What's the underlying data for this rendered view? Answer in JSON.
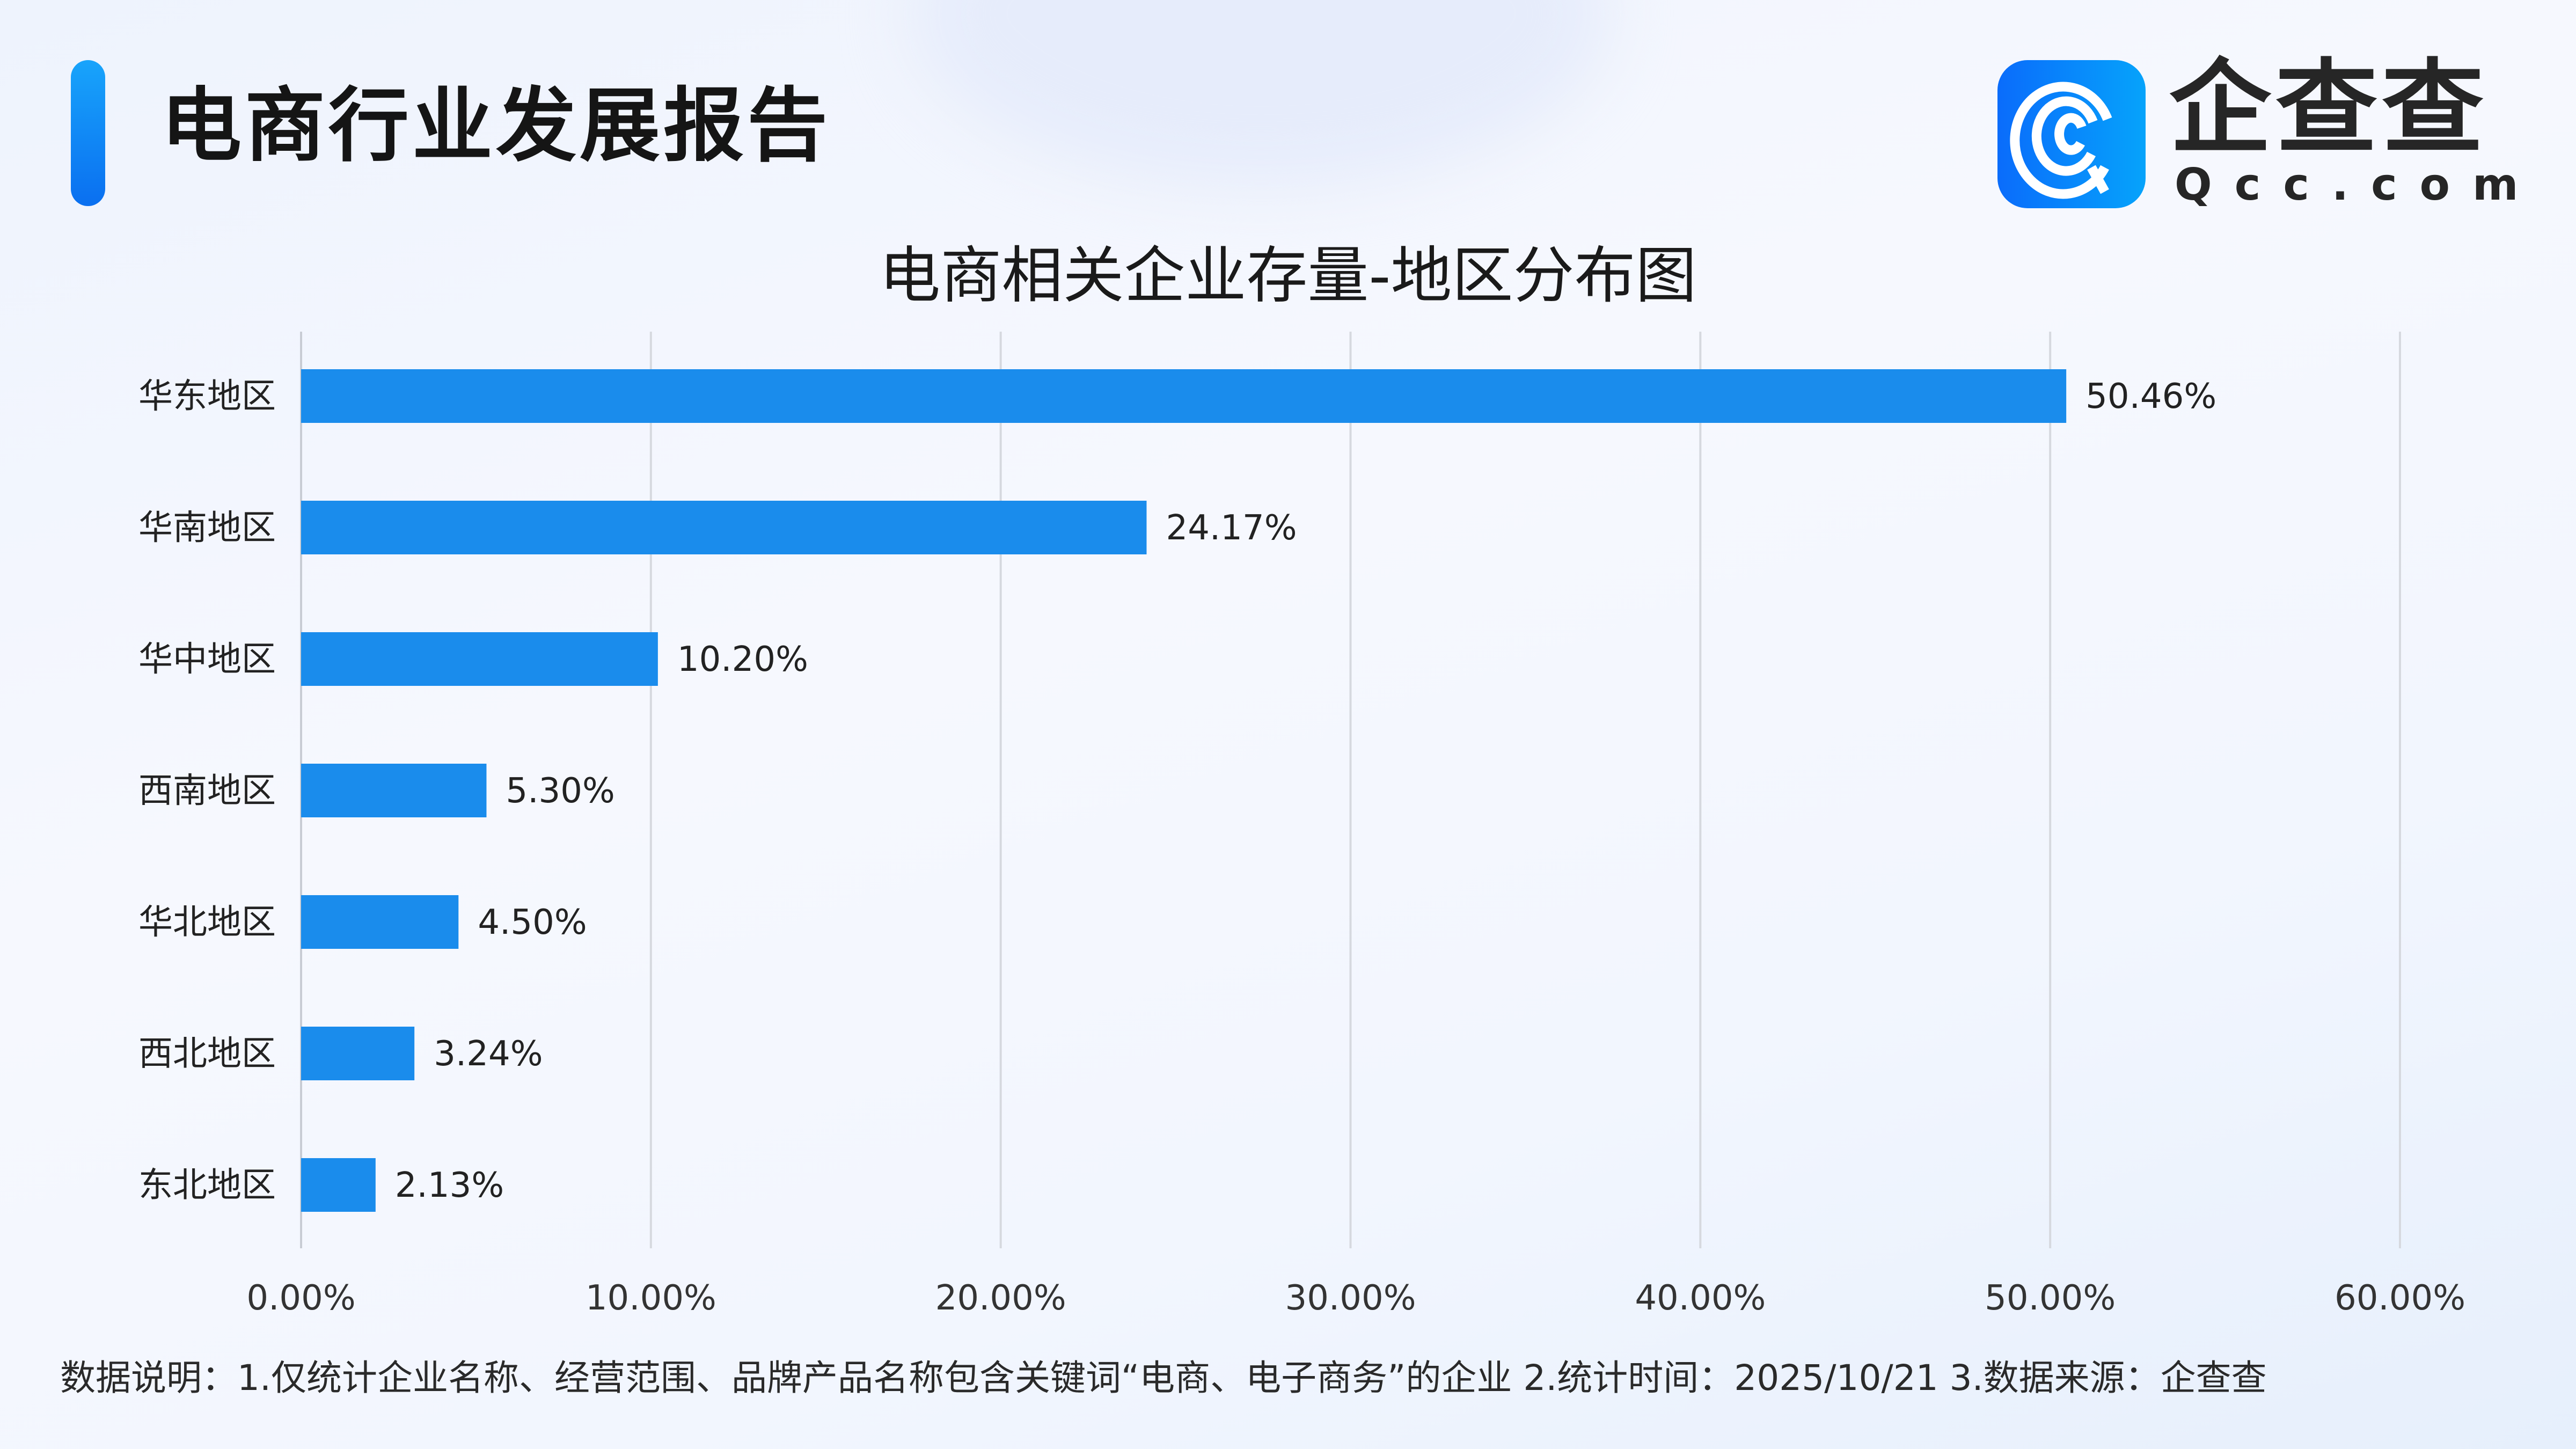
{
  "header": {
    "title": "电商行业发展报告"
  },
  "logo": {
    "text_cn": "企查查",
    "text_en": "Qcc.com",
    "icon": "qcc-logo-icon"
  },
  "chart_data": {
    "type": "bar",
    "orientation": "horizontal",
    "title": "电商相关企业存量-地区分布图",
    "categories": [
      "华东地区",
      "华南地区",
      "华中地区",
      "西南地区",
      "华北地区",
      "西北地区",
      "东北地区"
    ],
    "values": [
      50.46,
      24.17,
      10.2,
      5.3,
      4.5,
      3.24,
      2.13
    ],
    "data_labels": [
      "50.46%",
      "24.17%",
      "10.20%",
      "5.30%",
      "4.50%",
      "3.24%",
      "2.13%"
    ],
    "xlim": [
      0,
      60
    ],
    "x_ticks": [
      "0.00%",
      "10.00%",
      "20.00%",
      "30.00%",
      "40.00%",
      "50.00%",
      "60.00%"
    ],
    "grid": "vertical",
    "bar_color": "#1a8cec",
    "xlabel": "",
    "ylabel": ""
  },
  "footer": {
    "note": "数据说明：1.仅统计企业名称、经营范围、品牌产品名称包含关键词“电商、电子商务”的企业   2.统计时间：2025/10/21    3.数据来源：企查查"
  },
  "colors": {
    "accent": "#1a8cec",
    "title_bar": "#0a6ff0"
  }
}
